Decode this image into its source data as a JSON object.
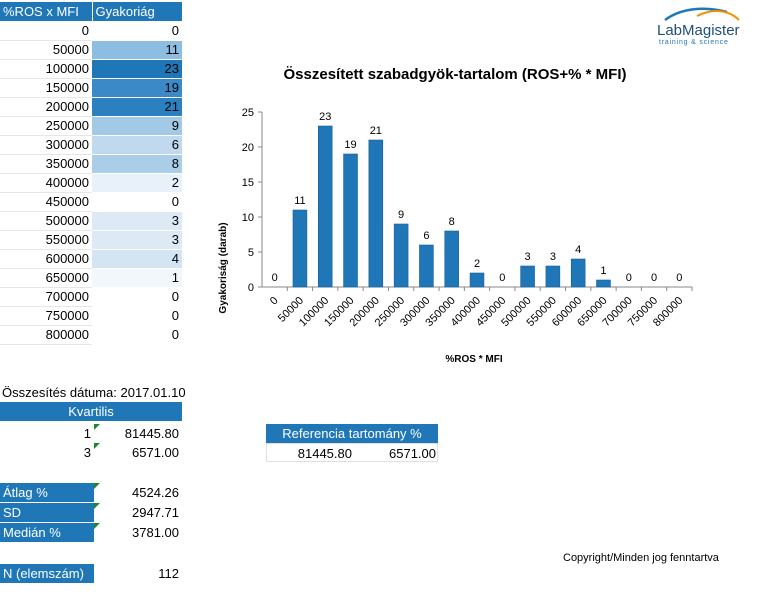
{
  "freq_table": {
    "headers": [
      "%ROS x MFI",
      "Gyakoriág"
    ],
    "rows": [
      {
        "bin": "0",
        "count": "0",
        "shade": "#ffffff"
      },
      {
        "bin": "50000",
        "count": "11",
        "shade": "#8dbde0"
      },
      {
        "bin": "100000",
        "count": "23",
        "shade": "#1f77b8"
      },
      {
        "bin": "150000",
        "count": "19",
        "shade": "#3b89c6"
      },
      {
        "bin": "200000",
        "count": "21",
        "shade": "#2c80bf"
      },
      {
        "bin": "250000",
        "count": "9",
        "shade": "#a2c9e6"
      },
      {
        "bin": "300000",
        "count": "6",
        "shade": "#c0d9ee"
      },
      {
        "bin": "350000",
        "count": "8",
        "shade": "#abcee8"
      },
      {
        "bin": "400000",
        "count": "2",
        "shade": "#e8f1f9"
      },
      {
        "bin": "450000",
        "count": "0",
        "shade": "#ffffff"
      },
      {
        "bin": "500000",
        "count": "3",
        "shade": "#dde9f5"
      },
      {
        "bin": "550000",
        "count": "3",
        "shade": "#dde9f5"
      },
      {
        "bin": "600000",
        "count": "4",
        "shade": "#d3e4f2"
      },
      {
        "bin": "650000",
        "count": "1",
        "shade": "#f2f7fc"
      },
      {
        "bin": "700000",
        "count": "0",
        "shade": "#ffffff"
      },
      {
        "bin": "750000",
        "count": "0",
        "shade": "#ffffff"
      },
      {
        "bin": "800000",
        "count": "0",
        "shade": "#ffffff"
      }
    ]
  },
  "summary": {
    "date_line": "Összesítés dátuma: 2017.01.10",
    "kvartilis_label": "Kvartilis",
    "q1_label": "1",
    "q1_value": "81445.80",
    "q3_label": "3",
    "q3_value": "6571.00",
    "atlag_label": "Átlag %",
    "atlag_value": "4524.26",
    "sd_label": "SD",
    "sd_value": "2947.71",
    "median_label": "Medián %",
    "median_value": "3781.00",
    "n_label": "N (elemszám)",
    "n_value": "112"
  },
  "reference": {
    "header": "Referencia tartomány %",
    "low": "81445.80",
    "high": "6571.00"
  },
  "logo": {
    "name": "LabMagister",
    "tagline": "training & science",
    "accent": "#f39200",
    "brand": "#1f77b8"
  },
  "copyright": "Copyright/Minden jog fenntartva",
  "chart_data": {
    "type": "bar",
    "title": "Összesített szabadgyök-tartalom (ROS+% * MFI)",
    "xlabel": "%ROS * MFI",
    "ylabel": "Gyakoriság  (darab)",
    "categories": [
      "0",
      "50000",
      "100000",
      "150000",
      "200000",
      "250000",
      "300000",
      "350000",
      "400000",
      "450000",
      "500000",
      "550000",
      "600000",
      "650000",
      "700000",
      "750000",
      "800000"
    ],
    "values": [
      0,
      11,
      23,
      19,
      21,
      9,
      6,
      8,
      2,
      0,
      3,
      3,
      4,
      1,
      0,
      0,
      0
    ],
    "ylim": [
      0,
      25
    ],
    "yticks": [
      0,
      5,
      10,
      15,
      20,
      25
    ],
    "bar_color": "#1f77b8",
    "data_labels": true,
    "grid": false,
    "legend": "none"
  }
}
